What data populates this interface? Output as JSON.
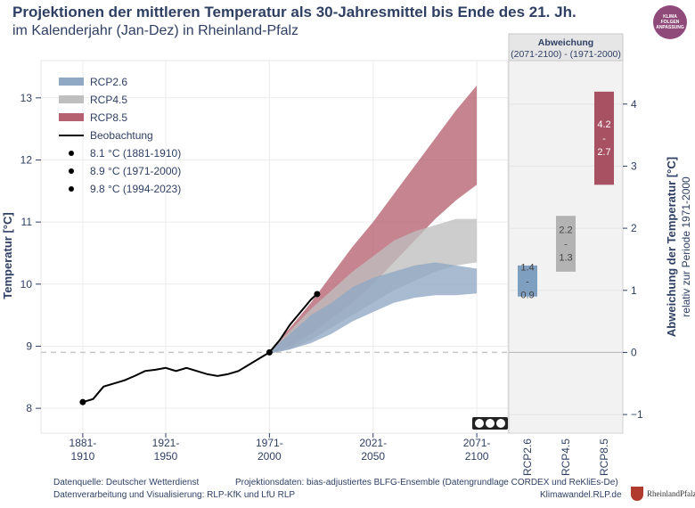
{
  "header": {
    "title": "Projektionen der mittleren Temperatur als 30-Jahresmittel bis Ende des 21. Jh.",
    "subtitle": "im Kalenderjahr (Jan-Dez) in Rheinland-Pfalz",
    "logo_lines": [
      "KLIMA",
      "FOLGEN",
      "ANPASSUNG"
    ]
  },
  "chart_data": [
    {
      "type": "area",
      "ylabel": "Temperatur [°C]",
      "ylim": [
        7.6,
        13.6
      ],
      "yticks": [
        8,
        9,
        10,
        11,
        12,
        13
      ],
      "xlim": [
        1880,
        2100
      ],
      "xticks": [
        {
          "x": 1895,
          "label1": "1881-",
          "label2": "1910"
        },
        {
          "x": 1935,
          "label1": "1921-",
          "label2": "1950"
        },
        {
          "x": 1985,
          "label1": "1971-",
          "label2": "2000"
        },
        {
          "x": 2035,
          "label1": "2021-",
          "label2": "2050"
        },
        {
          "x": 2085,
          "label1": "2071-",
          "label2": "2100"
        }
      ],
      "grid": true,
      "legend_position": "top-left",
      "reference_line": 8.9,
      "series": [
        {
          "name": "RCP2.6",
          "color": "#8fa8c4",
          "x": [
            1985,
            1995,
            2005,
            2015,
            2025,
            2035,
            2045,
            2055,
            2065,
            2075,
            2085
          ],
          "lower": [
            8.88,
            8.95,
            9.05,
            9.2,
            9.4,
            9.55,
            9.7,
            9.78,
            9.82,
            9.82,
            9.85
          ],
          "upper": [
            8.92,
            9.2,
            9.5,
            9.7,
            9.95,
            10.1,
            10.2,
            10.3,
            10.35,
            10.3,
            10.25
          ]
        },
        {
          "name": "RCP4.5",
          "color": "#bfbfbf",
          "x": [
            1985,
            1995,
            2005,
            2015,
            2025,
            2035,
            2045,
            2055,
            2065,
            2075,
            2085
          ],
          "lower": [
            8.88,
            8.95,
            9.1,
            9.3,
            9.5,
            9.7,
            9.9,
            10.05,
            10.2,
            10.3,
            10.35
          ],
          "upper": [
            8.92,
            9.25,
            9.6,
            9.9,
            10.2,
            10.45,
            10.7,
            10.85,
            10.95,
            11.05,
            11.05
          ]
        },
        {
          "name": "RCP8.5",
          "color": "#b5616f",
          "x": [
            1985,
            1995,
            2005,
            2015,
            2025,
            2035,
            2045,
            2055,
            2065,
            2075,
            2085
          ],
          "lower": [
            8.88,
            9.0,
            9.2,
            9.45,
            9.7,
            10.0,
            10.35,
            10.7,
            11.05,
            11.35,
            11.6
          ],
          "upper": [
            8.92,
            9.3,
            9.7,
            10.15,
            10.6,
            11.0,
            11.45,
            11.9,
            12.35,
            12.8,
            13.2
          ]
        }
      ],
      "observation": {
        "name": "Beobachtung",
        "x": [
          1895,
          1900,
          1905,
          1910,
          1915,
          1920,
          1925,
          1930,
          1935,
          1940,
          1945,
          1950,
          1955,
          1960,
          1965,
          1970,
          1975,
          1980,
          1985,
          1990,
          1995,
          2000,
          2005,
          2008
        ],
        "y": [
          8.1,
          8.15,
          8.35,
          8.4,
          8.45,
          8.52,
          8.6,
          8.62,
          8.65,
          8.6,
          8.65,
          8.6,
          8.55,
          8.52,
          8.55,
          8.6,
          8.7,
          8.8,
          8.9,
          9.1,
          9.35,
          9.55,
          9.75,
          9.84
        ]
      },
      "points": [
        {
          "label": "8.1 °C (1881-1910)",
          "x": 1895,
          "y": 8.1
        },
        {
          "label": "8.9 °C (1971-2000)",
          "x": 1985,
          "y": 8.9
        },
        {
          "label": "9.8 °C (1994-2023)",
          "x": 2008,
          "y": 9.84
        }
      ]
    },
    {
      "type": "bar",
      "title": "Abweichung",
      "subtitle": "(2071-2100) - (1971-2000)",
      "ylabel": "Abweichung der Temperatur [°C]",
      "ylabel2": "relativ zur Periode 1971-2000",
      "ylim": [
        -1.3,
        4.7
      ],
      "yticks": [
        -1,
        0,
        1,
        2,
        3,
        4
      ],
      "categories": [
        "RCP2.6",
        "RCP4.5",
        "RCP8.5"
      ],
      "ranges": [
        {
          "name": "RCP2.6",
          "low": 0.9,
          "high": 1.4,
          "high_label": "1.4",
          "low_label": "0.9",
          "sep": "-",
          "color": "#7f9fc0"
        },
        {
          "name": "RCP4.5",
          "low": 1.3,
          "high": 2.2,
          "high_label": "2.2",
          "low_label": "1.3",
          "sep": "-",
          "color": "#b3b3b3"
        },
        {
          "name": "RCP8.5",
          "low": 2.7,
          "high": 4.2,
          "high_label": "4.2",
          "low_label": "2.7",
          "sep": "-",
          "color": "#a85162"
        }
      ]
    }
  ],
  "footer": {
    "source_label": "Datenquelle:  Deutscher Wetterdienst",
    "projection_label": "Projektionsdaten: bias-adjustiertes BLFG-Ensemble (Datengrundlage CORDEX und ReKliEs-De)",
    "processing_label": "Datenverarbeitung und Visualisierung: RLP-KfK und LfU RLP",
    "website": "Klimawandel.RLP.de",
    "rlp_name": "RheinlandPfalz"
  }
}
